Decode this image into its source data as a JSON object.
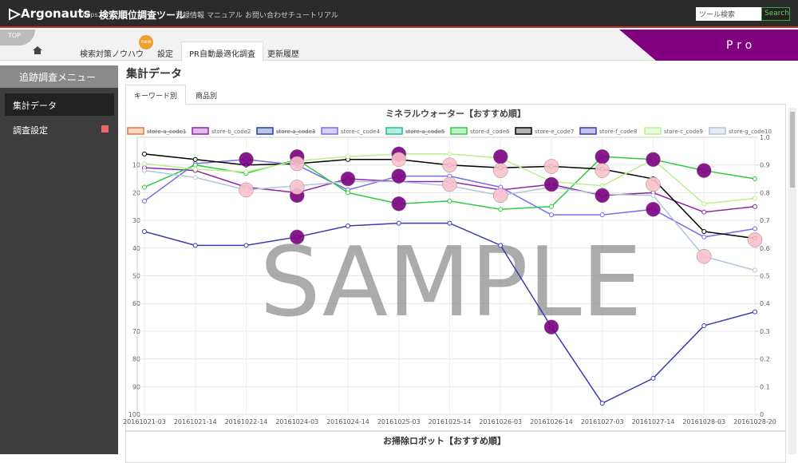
{
  "header": {
    "logo": "Argonauts",
    "logo_sub": "Apps.",
    "app_name": "検索順位調査ツール",
    "nav": [
      "登録情報",
      "マニュアル",
      "お問い合わせ",
      "チュートリアル"
    ],
    "search_placeholder": "ツール検索",
    "search_button": "Search"
  },
  "subnav": {
    "top_badge": "TOP",
    "tabs": [
      "検索対策ノウハウ",
      "設定",
      "PR自動最適化調査",
      "更新履歴"
    ],
    "new_badge": "new",
    "plan": "Pro"
  },
  "sidebar": {
    "title": "追跡調査メニュー",
    "items": [
      "集計データ",
      "調査設定"
    ]
  },
  "main": {
    "title": "集計データ",
    "tabs": [
      "キーワード別",
      "商品別"
    ],
    "next_chart_title": "お掃除ロボット【おすすめ順】"
  },
  "chart_data": {
    "type": "line",
    "title": "ミネラルウォーター【おすすめ順】",
    "watermark": "SAMPLE",
    "categories": [
      "20161021-03",
      "20161021-14",
      "20161022-14",
      "20161024-03",
      "20161024-14",
      "20161025-03",
      "20161025-14",
      "20161026-03",
      "20161026-14",
      "20161027-03",
      "20161027-14",
      "20161028-03",
      "20161028-20"
    ],
    "ylim": [
      0,
      100
    ],
    "y_reversed": true,
    "yticks": [
      10,
      20,
      30,
      40,
      50,
      60,
      70,
      80,
      90,
      100
    ],
    "y2lim": [
      0,
      1
    ],
    "y2ticks": [
      0,
      0.1,
      0.2,
      0.3,
      0.4,
      0.5,
      0.6,
      0.7,
      0.8,
      0.9,
      {
        "value": 1,
        "label": "1.0"
      }
    ],
    "grid": true,
    "series": [
      {
        "name": "store-a_code1",
        "color": "#e8743b",
        "hidden": true,
        "values": [
          null,
          null,
          null,
          null,
          null,
          null,
          null,
          null,
          null,
          null,
          null,
          null,
          null
        ]
      },
      {
        "name": "store-b_code2",
        "color": "#8e24aa",
        "values": [
          11,
          12,
          18,
          20,
          15,
          16,
          16,
          19,
          17,
          21,
          20,
          27,
          25
        ]
      },
      {
        "name": "store-a_code3",
        "color": "#1f3f9f",
        "hidden": true,
        "values": [
          null,
          null,
          null,
          null,
          null,
          null,
          null,
          null,
          null,
          null,
          null,
          null,
          null
        ]
      },
      {
        "name": "store-c_code4",
        "color": "#7b68ee",
        "values": [
          23,
          9.5,
          8,
          10,
          19,
          14,
          14,
          18,
          28,
          28,
          26,
          36,
          33
        ]
      },
      {
        "name": "store-a_code5",
        "color": "#1abc9c",
        "hidden": true,
        "values": [
          null,
          null,
          null,
          null,
          null,
          null,
          null,
          null,
          null,
          null,
          null,
          null,
          null
        ]
      },
      {
        "name": "store-d_code6",
        "color": "#2ecc40",
        "values": [
          18,
          10,
          13,
          8,
          20,
          24,
          23,
          26,
          25,
          7,
          8,
          12,
          15
        ]
      },
      {
        "name": "store-e_code7",
        "color": "#000000",
        "values": [
          6,
          8,
          10,
          9.5,
          8,
          8,
          10,
          11,
          10.5,
          11.5,
          15,
          34,
          36.5
        ]
      },
      {
        "name": "store-f_code8",
        "color": "#3b3bb3",
        "values": [
          34,
          39,
          39,
          36,
          32,
          31,
          31,
          39,
          68.5,
          96,
          87,
          68,
          63
        ]
      },
      {
        "name": "store-c_code9",
        "color": "#b8f08a",
        "values": [
          9.5,
          11.5,
          12.5,
          8.5,
          7,
          6,
          6,
          7.5,
          16,
          17.5,
          8,
          24,
          22
        ]
      },
      {
        "name": "store-g_code10",
        "color": "#b0c4de",
        "values": [
          12,
          14.5,
          19,
          17.5,
          16,
          16,
          17.5,
          21,
          18,
          20.5,
          21,
          43,
          48
        ]
      }
    ],
    "markers": [
      {
        "color": "#7b0080",
        "x": [
          "20161022-14",
          "20161024-03",
          "20161024-03",
          "20161024-03",
          "20161024-14",
          "20161025-03",
          "20161025-03",
          "20161025-03",
          "20161026-03",
          "20161026-14",
          "20161026-14",
          "20161027-03",
          "20161027-03",
          "20161027-14",
          "20161027-14",
          "20161028-03"
        ],
        "values": [
          8,
          7,
          21,
          36,
          15,
          6,
          14,
          24,
          7,
          17,
          68.5,
          7,
          21,
          8,
          26,
          12
        ]
      },
      {
        "color": "#f9c0cb",
        "x": [
          "20161022-14",
          "20161024-03",
          "20161024-03",
          "20161025-03",
          "20161025-14",
          "20161025-14",
          "20161026-03",
          "20161026-03",
          "20161026-14",
          "20161027-03",
          "20161027-14",
          "20161028-03",
          "20161028-20"
        ],
        "values": [
          19,
          9.5,
          18,
          8,
          10,
          17,
          12,
          21,
          10.5,
          12,
          17,
          43,
          37
        ]
      }
    ]
  }
}
